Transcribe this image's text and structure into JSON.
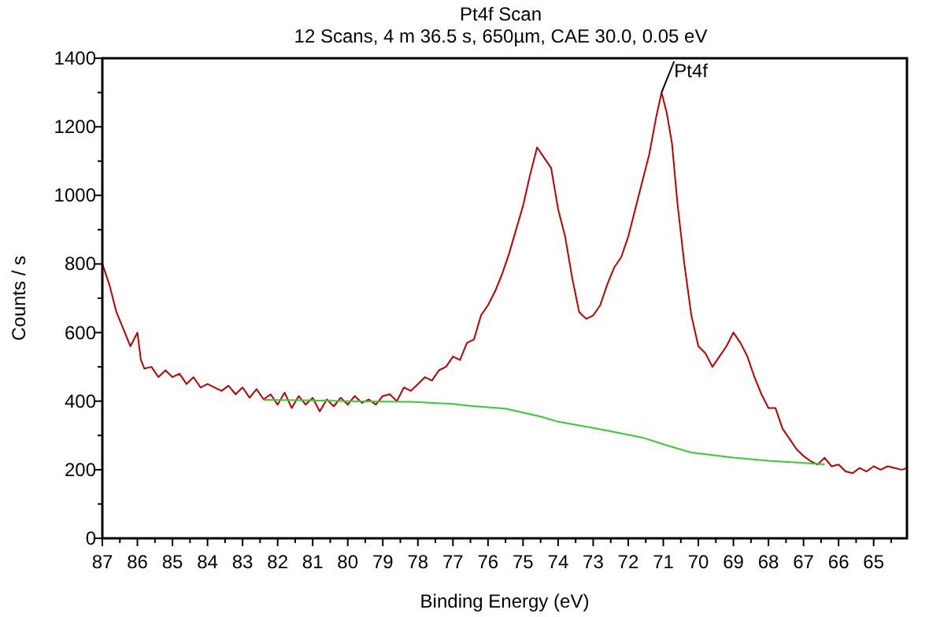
{
  "chart_data": {
    "type": "line",
    "title": "Pt4f Scan",
    "subtitle": "12 Scans,  4 m 36.5 s,  650µm,  CAE 30.0,  0.05 eV",
    "xlabel": "Binding Energy (eV)",
    "ylabel": "Counts / s",
    "xlim": [
      87,
      64.05
    ],
    "ylim": [
      0,
      1400
    ],
    "xticks": [
      87,
      {
        "value": 86.5,
        "label": null
      },
      86,
      {
        "value": 85.5,
        "label": null
      },
      85,
      {
        "value": 84.5,
        "label": null
      },
      84,
      {
        "value": 83.5,
        "label": null
      },
      83,
      {
        "value": 82.5,
        "label": null
      },
      82,
      {
        "value": 81.5,
        "label": null
      },
      81,
      {
        "value": 80.5,
        "label": null
      },
      80,
      {
        "value": 79.5,
        "label": null
      },
      79,
      {
        "value": 78.5,
        "label": null
      },
      78,
      {
        "value": 77.5,
        "label": null
      },
      77,
      {
        "value": 76.5,
        "label": null
      },
      76,
      {
        "value": 75.5,
        "label": null
      },
      75,
      {
        "value": 74.5,
        "label": null
      },
      74,
      {
        "value": 73.5,
        "label": null
      },
      73,
      {
        "value": 72.5,
        "label": null
      },
      72,
      {
        "value": 71.5,
        "label": null
      },
      71,
      {
        "value": 70.5,
        "label": null
      },
      70,
      {
        "value": 69.5,
        "label": null
      },
      69,
      {
        "value": 68.5,
        "label": null
      },
      68,
      {
        "value": 67.5,
        "label": null
      },
      67,
      {
        "value": 66.5,
        "label": null
      },
      66,
      {
        "value": 65.5,
        "label": null
      },
      65,
      {
        "value": 64.5,
        "label": null
      }
    ],
    "yticks": [
      0,
      {
        "value": 100,
        "label": null
      },
      200,
      {
        "value": 300,
        "label": null
      },
      400,
      {
        "value": 500,
        "label": null
      },
      600,
      {
        "value": 700,
        "label": null
      },
      800,
      {
        "value": 900,
        "label": null
      },
      1000,
      {
        "value": 1100,
        "label": null
      },
      1200,
      {
        "value": 1300,
        "label": null
      },
      1400
    ],
    "grid": false,
    "marker": "none",
    "line_style": "solid",
    "annotations": [
      {
        "text": "Pt4f",
        "x": 71.05,
        "y": 1300
      }
    ],
    "series": [
      {
        "color": "#c00000",
        "x": [
          87,
          86.8,
          86.6,
          86.4,
          86.2,
          86.0,
          85.9,
          85.8,
          85.6,
          85.4,
          85.2,
          85.0,
          84.8,
          84.6,
          84.4,
          84.2,
          84.0,
          83.8,
          83.6,
          83.4,
          83.2,
          83.0,
          82.8,
          82.6,
          82.4,
          82.2,
          82.0,
          81.8,
          81.6,
          81.4,
          81.2,
          81.0,
          80.8,
          80.6,
          80.4,
          80.2,
          80.0,
          79.8,
          79.6,
          79.4,
          79.2,
          79.0,
          78.8,
          78.6,
          78.4,
          78.2,
          78.0,
          77.8,
          77.6,
          77.4,
          77.2,
          77.0,
          76.8,
          76.6,
          76.4,
          76.2,
          76.0,
          75.8,
          75.6,
          75.4,
          75.2,
          75.0,
          74.8,
          74.6,
          74.4,
          74.2,
          74.0,
          73.8,
          73.6,
          73.4,
          73.2,
          73.0,
          72.8,
          72.6,
          72.4,
          72.2,
          72.0,
          71.8,
          71.6,
          71.4,
          71.2,
          71.05,
          70.9,
          70.75,
          70.6,
          70.4,
          70.2,
          70.0,
          69.8,
          69.6,
          69.4,
          69.2,
          69.0,
          68.8,
          68.6,
          68.4,
          68.2,
          68.0,
          67.8,
          67.6,
          67.4,
          67.2,
          67.0,
          66.8,
          66.6,
          66.4,
          66.2,
          66.0,
          65.8,
          65.6,
          65.4,
          65.2,
          65.0,
          64.8,
          64.6,
          64.4,
          64.2,
          64.05
        ],
        "values": [
          800,
          740,
          660,
          610,
          560,
          600,
          520,
          495,
          500,
          470,
          490,
          470,
          480,
          450,
          470,
          440,
          450,
          440,
          430,
          445,
          420,
          440,
          410,
          435,
          405,
          420,
          390,
          425,
          380,
          415,
          390,
          410,
          370,
          405,
          385,
          410,
          390,
          415,
          395,
          405,
          390,
          415,
          420,
          400,
          440,
          430,
          450,
          470,
          460,
          490,
          500,
          530,
          520,
          570,
          580,
          650,
          680,
          720,
          770,
          830,
          900,
          970,
          1060,
          1140,
          1110,
          1080,
          960,
          880,
          760,
          660,
          640,
          650,
          680,
          740,
          790,
          820,
          880,
          960,
          1040,
          1120,
          1230,
          1300,
          1240,
          1150,
          980,
          800,
          650,
          560,
          540,
          500,
          530,
          560,
          600,
          570,
          530,
          470,
          420,
          380,
          380,
          320,
          290,
          260,
          240,
          225,
          215,
          235,
          210,
          215,
          195,
          190,
          205,
          195,
          210,
          200,
          210,
          205,
          200,
          205
        ]
      },
      {
        "color": "#33cc33",
        "x": [
          82.4,
          81,
          80,
          79,
          78.2,
          77,
          76.5,
          75.5,
          74.5,
          74,
          73,
          72.5,
          71.6,
          70.8,
          70.2,
          69,
          68,
          67,
          66.4
        ],
        "values": [
          404,
          402,
          400,
          399,
          398,
          392,
          386,
          378,
          355,
          340,
          322,
          312,
          294,
          268,
          250,
          235,
          226,
          220,
          216
        ]
      }
    ]
  }
}
